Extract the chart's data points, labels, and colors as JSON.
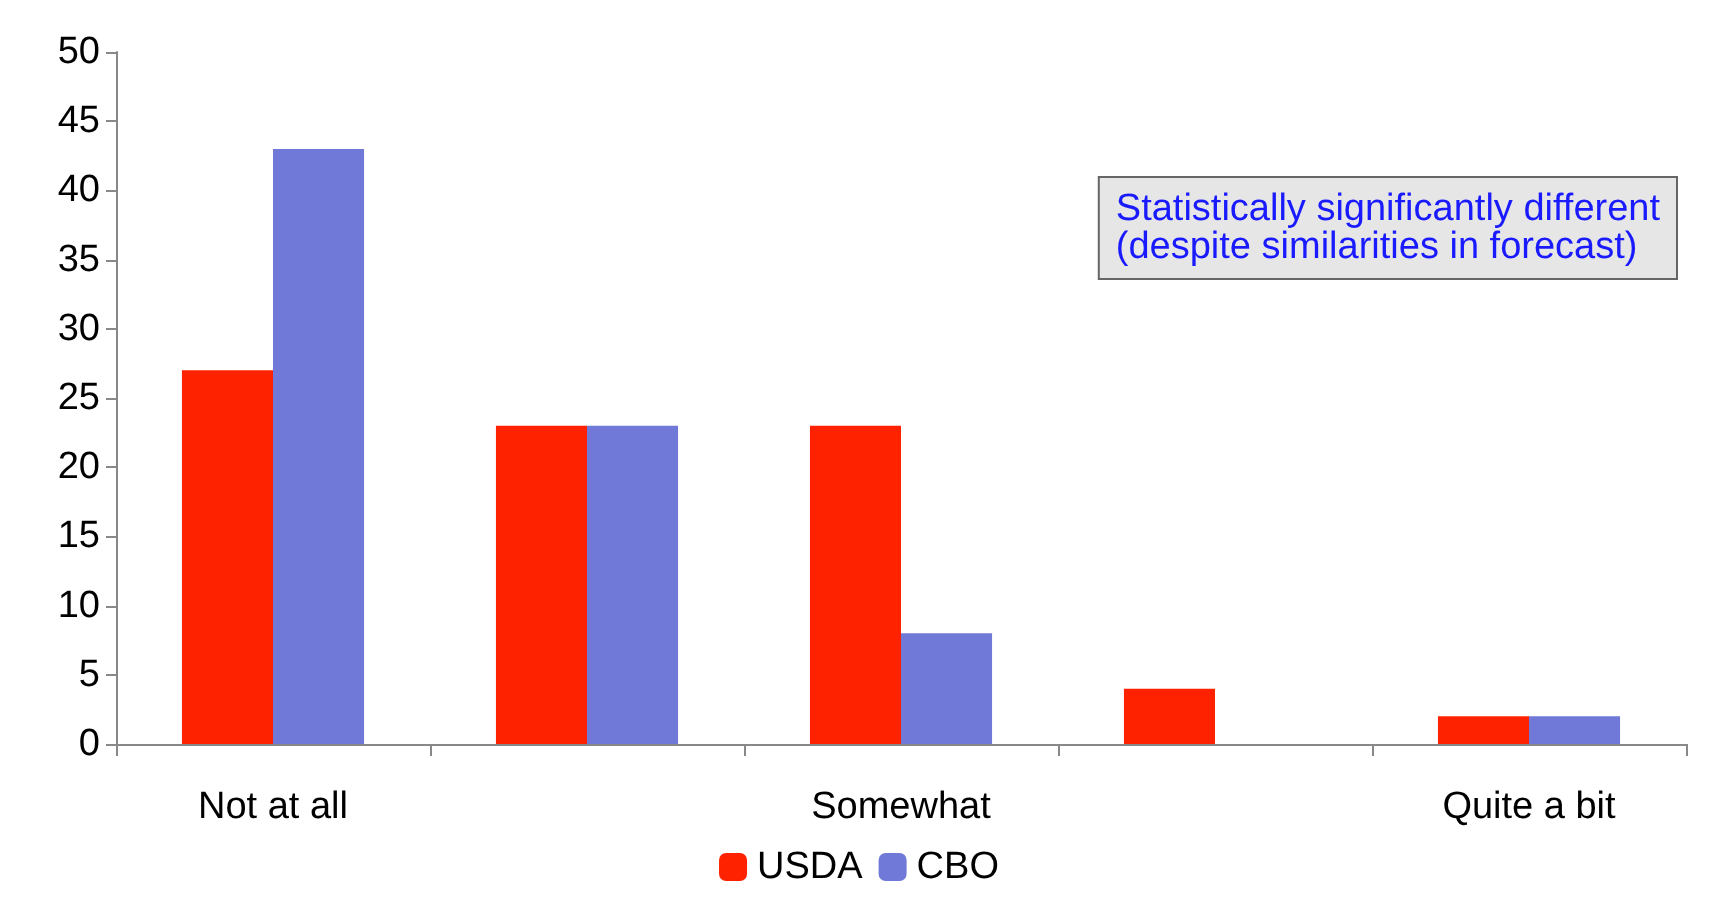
{
  "chart_data": {
    "type": "bar",
    "categories": [
      "Not at all",
      null,
      "Somewhat",
      null,
      "Quite a bit"
    ],
    "series": [
      {
        "name": "USDA",
        "color": "#ff2200",
        "values": [
          27,
          23,
          23,
          4,
          2
        ]
      },
      {
        "name": "CBO",
        "color": "#7078d8",
        "values": [
          43,
          23,
          8,
          0,
          2
        ]
      }
    ],
    "ylim": [
      0,
      50
    ],
    "yticks": [
      0,
      5,
      10,
      15,
      20,
      25,
      30,
      35,
      40,
      45,
      50
    ],
    "grid": false,
    "legend": "bottom",
    "annotations": [
      "Statistically significantly different\n(despite similarities in forecast)"
    ]
  }
}
